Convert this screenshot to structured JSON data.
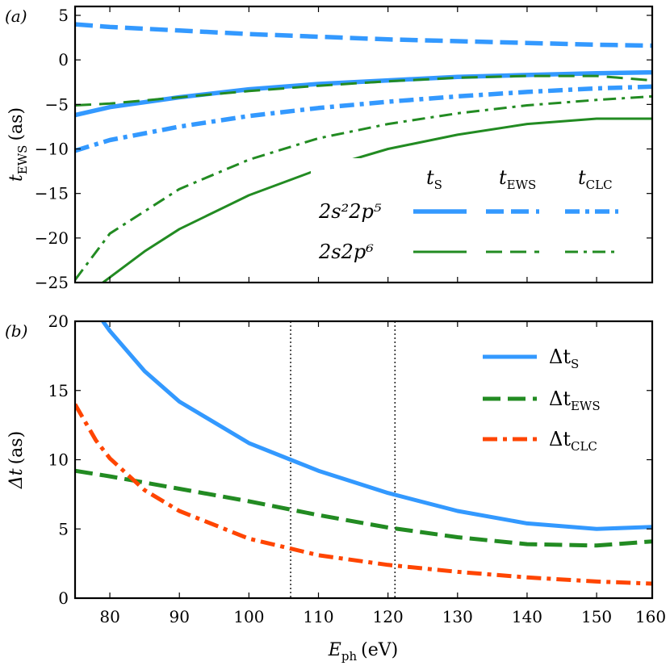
{
  "chart_data": [
    {
      "panel": "(a)",
      "type": "line",
      "ylabel": "t",
      "ylabel_sub": "EWS",
      "ylabel_unit": "(as)",
      "xlim": [
        75,
        158
      ],
      "ylim": [
        -25,
        6
      ],
      "yticks": [
        5,
        0,
        -5,
        -10,
        -15,
        -20,
        -25
      ],
      "ytick_labels": [
        "5",
        "0",
        "−5",
        "−10",
        "−15",
        "−20",
        "−25"
      ],
      "legend": {
        "placement": "lower-right",
        "column_headers": [
          {
            "main": "t",
            "sub": "S"
          },
          {
            "main": "t",
            "sub": "EWS"
          },
          {
            "main": "t",
            "sub": "CLC"
          }
        ],
        "row_labels": [
          "2s²2p⁵",
          "2s2p⁶"
        ]
      },
      "series": [
        {
          "name": "2s²2p⁵ tS",
          "style": "solid",
          "color": "#3399ff",
          "width": "thick",
          "x": [
            75,
            80,
            90,
            100,
            110,
            120,
            130,
            140,
            150,
            158
          ],
          "y": [
            -6.2,
            -5.3,
            -4.2,
            -3.3,
            -2.7,
            -2.3,
            -1.9,
            -1.7,
            -1.5,
            -1.4
          ]
        },
        {
          "name": "2s²2p⁵ tEWS",
          "style": "dashed",
          "color": "#3399ff",
          "width": "thick",
          "x": [
            75,
            80,
            90,
            100,
            110,
            120,
            130,
            140,
            150,
            158
          ],
          "y": [
            4.0,
            3.7,
            3.3,
            2.9,
            2.6,
            2.3,
            2.1,
            1.9,
            1.7,
            1.6
          ]
        },
        {
          "name": "2s²2p⁵ tCLC",
          "style": "dashdot",
          "color": "#3399ff",
          "width": "thick",
          "x": [
            75,
            80,
            90,
            100,
            110,
            120,
            130,
            140,
            150,
            158
          ],
          "y": [
            -10.2,
            -9.0,
            -7.5,
            -6.3,
            -5.4,
            -4.7,
            -4.1,
            -3.6,
            -3.2,
            -3.0
          ]
        },
        {
          "name": "2s2p⁶ tS",
          "style": "solid",
          "color": "#228b22",
          "width": "thin",
          "x": [
            79,
            85,
            90,
            100,
            110,
            120,
            130,
            140,
            150,
            158
          ],
          "y": [
            -25,
            -21.5,
            -19,
            -15.2,
            -12.3,
            -10.0,
            -8.4,
            -7.2,
            -6.6,
            -6.6
          ]
        },
        {
          "name": "2s2p⁶ tEWS",
          "style": "dashed",
          "color": "#228b22",
          "width": "thin",
          "x": [
            75,
            80,
            90,
            100,
            110,
            120,
            130,
            140,
            150,
            158
          ],
          "y": [
            -5.1,
            -4.9,
            -4.2,
            -3.5,
            -2.9,
            -2.4,
            -2.0,
            -1.8,
            -1.8,
            -2.3
          ]
        },
        {
          "name": "2s2p⁶ tCLC",
          "style": "dashdot",
          "color": "#228b22",
          "width": "thin",
          "x": [
            75,
            80,
            90,
            100,
            110,
            120,
            130,
            140,
            150,
            158
          ],
          "y": [
            -24.7,
            -19.5,
            -14.5,
            -11.2,
            -8.8,
            -7.2,
            -6.0,
            -5.1,
            -4.5,
            -4.1
          ]
        }
      ]
    },
    {
      "panel": "(b)",
      "type": "line",
      "xlabel": "E",
      "xlabel_sub": "ph",
      "xlabel_unit": "(eV)",
      "ylabel": "Δt",
      "ylabel_unit": "(as)",
      "xlim": [
        75,
        158
      ],
      "ylim": [
        0,
        20
      ],
      "xticks": [
        80,
        90,
        100,
        110,
        120,
        130,
        140,
        150,
        160
      ],
      "xtick_labels": [
        "80",
        "90",
        "100",
        "110",
        "120",
        "130",
        "140",
        "150",
        "160"
      ],
      "yticks": [
        20,
        15,
        10,
        5,
        0
      ],
      "ytick_labels": [
        "20",
        "15",
        "10",
        "5",
        "0"
      ],
      "vlines": [
        106,
        121
      ],
      "legend": {
        "placement": "upper-right",
        "entries": [
          {
            "main": "Δt",
            "sub": "S"
          },
          {
            "main": "Δt",
            "sub": "EWS"
          },
          {
            "main": "Δt",
            "sub": "CLC"
          }
        ]
      },
      "series": [
        {
          "name": "ΔtS",
          "style": "solid",
          "color": "#3399ff",
          "x": [
            79,
            80,
            85,
            90,
            100,
            106,
            110,
            120,
            130,
            140,
            150,
            158
          ],
          "y": [
            20,
            19.3,
            16.4,
            14.2,
            11.2,
            10.0,
            9.2,
            7.6,
            6.3,
            5.4,
            5.0,
            5.15
          ]
        },
        {
          "name": "ΔtEWS",
          "style": "dashed",
          "color": "#228b22",
          "x": [
            75,
            80,
            90,
            100,
            110,
            120,
            130,
            140,
            150,
            158
          ],
          "y": [
            9.2,
            8.8,
            7.9,
            7.0,
            6.0,
            5.1,
            4.4,
            3.9,
            3.8,
            4.1
          ]
        },
        {
          "name": "ΔtCLC",
          "style": "dashdot",
          "color": "#ff4500",
          "x": [
            75,
            78,
            80,
            85,
            90,
            100,
            110,
            120,
            130,
            140,
            150,
            158
          ],
          "y": [
            14.0,
            11.4,
            10.1,
            7.8,
            6.3,
            4.3,
            3.1,
            2.4,
            1.9,
            1.5,
            1.2,
            1.05
          ]
        }
      ]
    }
  ]
}
